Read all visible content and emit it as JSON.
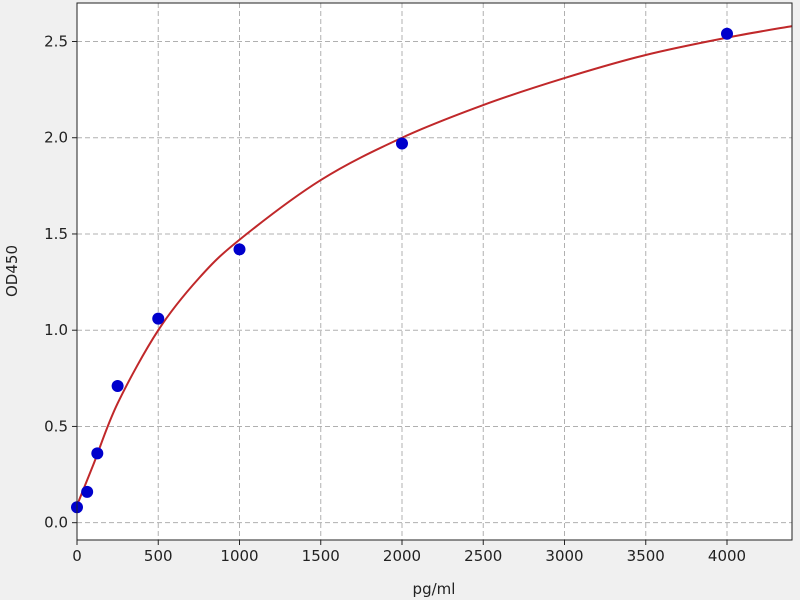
{
  "chart_data": {
    "type": "scatter",
    "title": "",
    "xlabel": "pg/ml",
    "ylabel": "OD450",
    "xlim": [
      0,
      4400
    ],
    "ylim": [
      -0.09,
      2.7
    ],
    "grid": true,
    "x_ticks": [
      "0",
      "500",
      "1000",
      "1500",
      "2000",
      "2500",
      "3000",
      "3500",
      "4000"
    ],
    "y_ticks": [
      "0.0",
      "0.5",
      "1.0",
      "1.5",
      "2.0",
      "2.5"
    ],
    "points": {
      "x": [
        0,
        62.5,
        125,
        250,
        500,
        1000,
        2000,
        4000
      ],
      "y": [
        0.08,
        0.16,
        0.36,
        0.71,
        1.06,
        1.42,
        1.97,
        2.54
      ],
      "color": "#0000cc"
    },
    "fit_curve": {
      "x": [
        0,
        100,
        250,
        500,
        750,
        1000,
        1500,
        2000,
        2500,
        3000,
        3500,
        4000,
        4400
      ],
      "y": [
        0.09,
        0.3,
        0.62,
        1.0,
        1.27,
        1.47,
        1.78,
        2.0,
        2.17,
        2.31,
        2.43,
        2.52,
        2.58
      ],
      "color": "#c0282a"
    }
  }
}
